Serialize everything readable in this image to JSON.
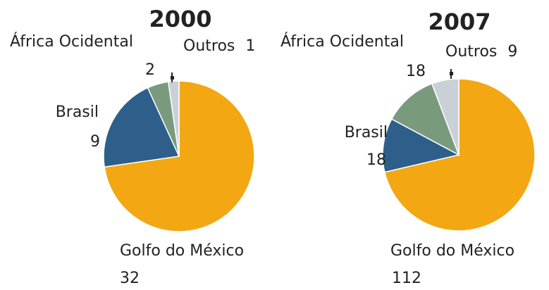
{
  "chart_data": [
    {
      "type": "pie",
      "title": "2000",
      "slices": [
        {
          "label": "Golfo do México",
          "value": 32,
          "color": "#f3a712"
        },
        {
          "label": "Brasil",
          "value": 9,
          "color": "#2e5f8a"
        },
        {
          "label": "África Ocidental",
          "value": 2,
          "color": "#7a9a7e"
        },
        {
          "label": "Outros",
          "value": 1,
          "color": "#c9d1d6"
        }
      ]
    },
    {
      "type": "pie",
      "title": "2007",
      "slices": [
        {
          "label": "Golfo do México",
          "value": 112,
          "color": "#f3a712"
        },
        {
          "label": "Brasil",
          "value": 18,
          "color": "#2e5f8a"
        },
        {
          "label": "África Ocidental",
          "value": 18,
          "color": "#7a9a7e"
        },
        {
          "label": "Outros",
          "value": 9,
          "color": "#c9d1d6"
        }
      ]
    }
  ]
}
